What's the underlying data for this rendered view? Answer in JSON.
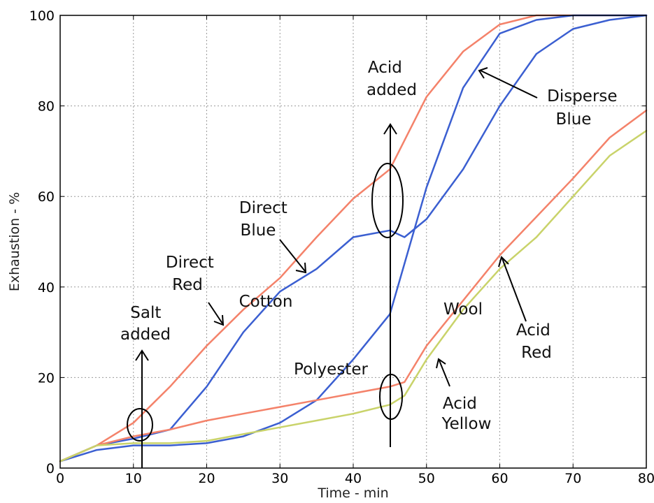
{
  "chart_data": {
    "type": "line",
    "xlabel": "Time - min",
    "ylabel": "Exhaustion - %",
    "xlim": [
      0,
      80
    ],
    "ylim": [
      0,
      100
    ],
    "xticks": [
      0,
      10,
      20,
      30,
      40,
      50,
      60,
      70,
      80
    ],
    "yticks": [
      0,
      20,
      40,
      60,
      80,
      100
    ],
    "grid": true,
    "series": [
      {
        "id": "direct-red",
        "color": "#f4826a",
        "x": [
          0,
          5,
          10,
          15,
          20,
          25,
          30,
          35,
          40,
          45,
          50,
          55,
          60,
          65,
          70,
          75,
          80
        ],
        "y": [
          1.5,
          5,
          10,
          18,
          27,
          35,
          42,
          51,
          59.5,
          66,
          82,
          92,
          98,
          100,
          100,
          100,
          100
        ]
      },
      {
        "id": "direct-blue",
        "color": "#3b5fd1",
        "x": [
          0,
          5,
          10,
          15,
          20,
          25,
          30,
          35,
          40,
          45,
          47,
          50,
          55,
          60,
          65,
          70,
          75,
          80
        ],
        "y": [
          1.5,
          5,
          6.5,
          8.5,
          18,
          30,
          39,
          44,
          51,
          52.5,
          51,
          55,
          66,
          80,
          91.5,
          97,
          99,
          100
        ]
      },
      {
        "id": "disperse-blue",
        "color": "#3b5fd1",
        "x": [
          0,
          5,
          10,
          15,
          20,
          25,
          30,
          35,
          40,
          45,
          50,
          55,
          60,
          65,
          70,
          75,
          80
        ],
        "y": [
          1.5,
          4,
          5,
          5,
          5.5,
          7,
          10,
          15,
          24,
          34,
          62,
          84,
          96,
          99,
          100,
          100,
          100
        ]
      },
      {
        "id": "acid-red",
        "color": "#f4826a",
        "x": [
          0,
          5,
          10,
          15,
          20,
          25,
          30,
          35,
          40,
          45,
          47,
          50,
          55,
          60,
          65,
          70,
          75,
          80
        ],
        "y": [
          1.5,
          5,
          7,
          8.5,
          10.5,
          12,
          13.5,
          15,
          16.5,
          18,
          19,
          27,
          37,
          47,
          55.5,
          64,
          73,
          79
        ]
      },
      {
        "id": "acid-yellow",
        "color": "#c9d36a",
        "x": [
          0,
          5,
          10,
          15,
          20,
          25,
          30,
          35,
          40,
          45,
          47,
          50,
          55,
          60,
          65,
          70,
          75,
          80
        ],
        "y": [
          1.5,
          5,
          5.5,
          5.5,
          6,
          7.5,
          9,
          10.5,
          12,
          14,
          16,
          24,
          35,
          44,
          51,
          60,
          69,
          74.5
        ]
      }
    ],
    "annotations": {
      "salt": [
        "Salt",
        "added"
      ],
      "acid": [
        "Acid",
        "added"
      ],
      "direct_red": [
        "Direct",
        "Red"
      ],
      "direct_blue": [
        "Direct",
        "Blue"
      ],
      "disperse_blue": [
        "Disperse",
        "Blue"
      ],
      "acid_red": [
        "Acid",
        "Red"
      ],
      "acid_yellow": [
        "Acid",
        "Yellow"
      ],
      "cotton": "Cotton",
      "polyester": "Polyester",
      "wool": "Wool"
    }
  }
}
